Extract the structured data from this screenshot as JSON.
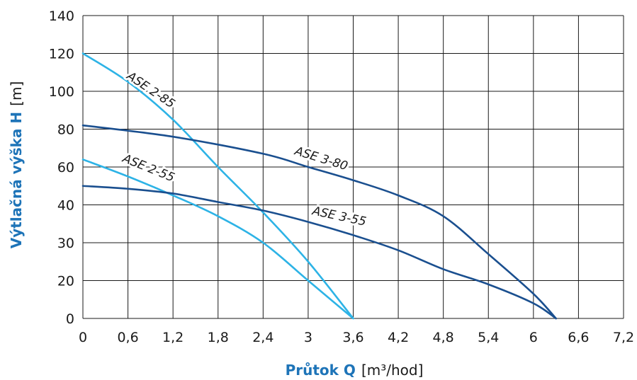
{
  "chart_data": {
    "type": "line",
    "xlabel": {
      "bold": "Průtok Q",
      "unit": "[m³/hod]"
    },
    "ylabel": {
      "bold": "Výtlačná výška H",
      "unit": "[m]"
    },
    "x_ticks": [
      "0",
      "0,6",
      "1,2",
      "1,8",
      "2,4",
      "3",
      "3,6",
      "4,2",
      "4,8",
      "5,4",
      "6",
      "6,6",
      "7,2"
    ],
    "y_ticks": [
      "0",
      "20",
      "30",
      "40",
      "60",
      "80",
      "100",
      "120",
      "140"
    ],
    "xlim": [
      0,
      7.2
    ],
    "grid": true,
    "series": [
      {
        "name": "ASE 2-85",
        "color": "#2db3e6",
        "points": [
          [
            0,
            120
          ],
          [
            0.6,
            105
          ],
          [
            1.2,
            85
          ],
          [
            1.8,
            60
          ],
          [
            2.4,
            38
          ],
          [
            3.0,
            25
          ],
          [
            3.6,
            0
          ]
        ]
      },
      {
        "name": "ASE 2-55",
        "color": "#2db3e6",
        "points": [
          [
            0,
            64
          ],
          [
            0.6,
            55
          ],
          [
            1.2,
            45
          ],
          [
            1.8,
            37
          ],
          [
            2.4,
            30
          ],
          [
            3.0,
            20
          ],
          [
            3.6,
            0
          ]
        ]
      },
      {
        "name": "ASE 3-80",
        "color": "#1a4f8f",
        "points": [
          [
            0,
            82
          ],
          [
            1.2,
            76
          ],
          [
            2.4,
            67
          ],
          [
            3.0,
            60
          ],
          [
            3.6,
            53
          ],
          [
            4.2,
            45
          ],
          [
            4.8,
            37
          ],
          [
            5.4,
            27
          ],
          [
            6.0,
            13
          ],
          [
            6.3,
            0
          ]
        ]
      },
      {
        "name": "ASE 3-55",
        "color": "#1a4f8f",
        "points": [
          [
            0,
            50
          ],
          [
            0.6,
            48.5
          ],
          [
            1.2,
            46
          ],
          [
            1.8,
            41.5
          ],
          [
            2.4,
            38.5
          ],
          [
            3.0,
            35.5
          ],
          [
            3.6,
            32
          ],
          [
            4.2,
            28
          ],
          [
            4.8,
            23
          ],
          [
            5.4,
            18
          ],
          [
            6.0,
            8
          ],
          [
            6.3,
            0
          ]
        ]
      }
    ]
  }
}
